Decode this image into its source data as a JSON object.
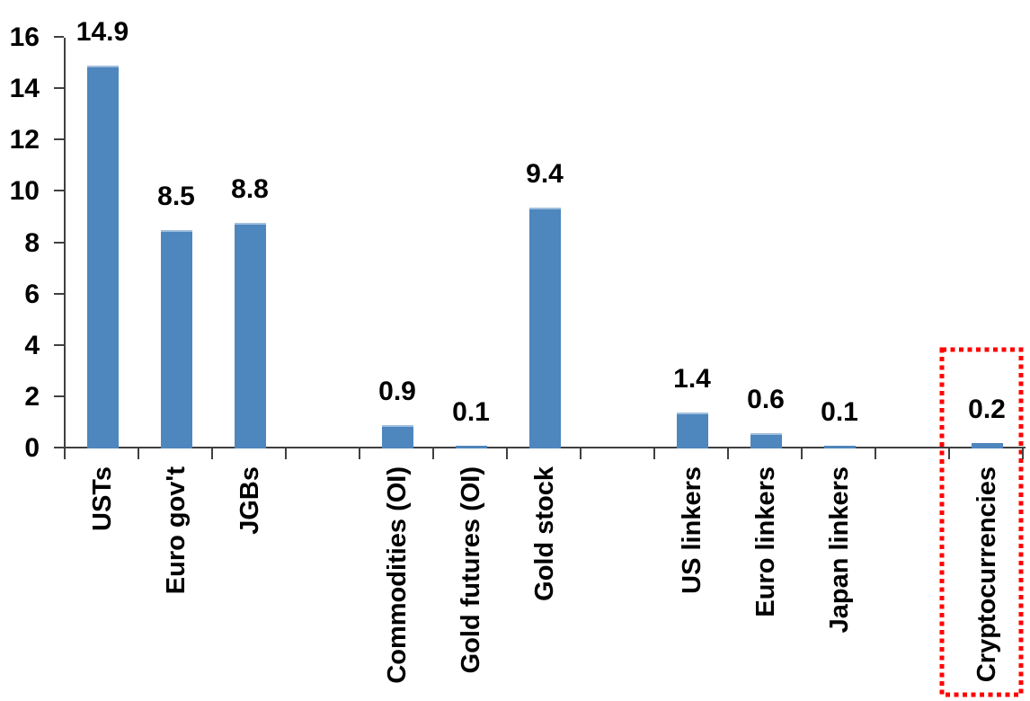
{
  "chart_data": {
    "type": "bar",
    "title": "",
    "xlabel": "",
    "ylabel": "",
    "categories": [
      "USTs",
      "Euro gov't",
      "JGBs",
      "Commodities (OI)",
      "Gold futures (OI)",
      "Gold stock",
      "US linkers",
      "Euro linkers",
      "Japan linkers",
      "Cryptocurrencies"
    ],
    "values": [
      14.9,
      8.5,
      8.8,
      0.9,
      0.1,
      9.4,
      1.4,
      0.6,
      0.1,
      0.2
    ],
    "data_labels": [
      "14.9",
      "8.5",
      "8.8",
      "0.9",
      "0.1",
      "9.4",
      "1.4",
      "0.6",
      "0.1",
      "0.2"
    ],
    "slots": [
      1,
      2,
      3,
      5,
      6,
      7,
      9,
      10,
      11,
      13
    ],
    "n_slots": 13,
    "y_ticks": [
      0,
      2,
      4,
      6,
      8,
      10,
      12,
      14,
      16
    ],
    "ylim": [
      0,
      16
    ],
    "grid": "off",
    "legend": "none",
    "label_rotation": "90-degrees-ccw",
    "bar_color": "#4E86BE",
    "bar_top_edge_color": "#9FBEDD",
    "axis_color": "#404040",
    "text_color": "#000000",
    "highlight": {
      "category": "Cryptocurrencies",
      "box_color": "#FF0000",
      "style": "dotted-rectangle"
    }
  }
}
